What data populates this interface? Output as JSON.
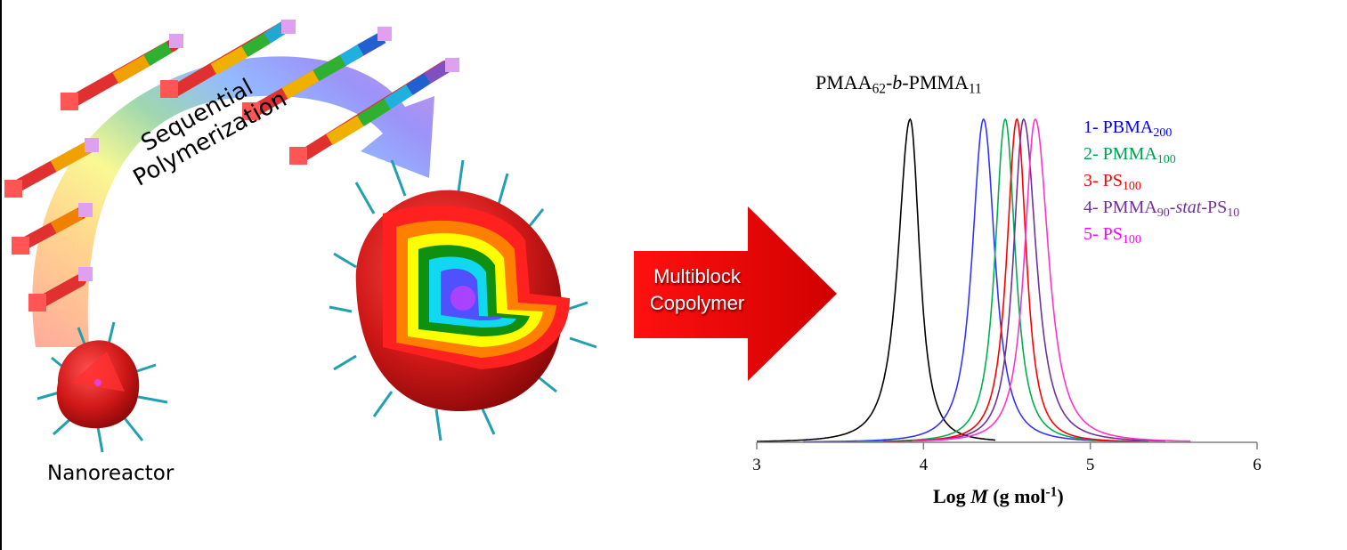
{
  "illustration": {
    "process_label_line1": "Sequential",
    "process_label_line2": "Polymerization",
    "nanoreactor_label": "Nanoreactor",
    "arrow_label_line1": "Multiblock",
    "arrow_label_line2": "Copolymer",
    "arrow_color": "#e00000"
  },
  "chart_data": {
    "type": "line",
    "title": "PMAA62-b-PMMA11",
    "title_parts": {
      "a": "PMAA",
      "a_sub": "62",
      "b": "-",
      "b_ital": "b",
      "c": "-PMMA",
      "c_sub": "11"
    },
    "xlabel": "Log M (g mol-1)",
    "xlabel_parts": {
      "a": "Log ",
      "m": "M",
      "b": " (g mol",
      "sup": "-1",
      "c": ")"
    },
    "ylabel": "",
    "xlim": [
      3,
      6
    ],
    "xticks": [
      "3",
      "4",
      "5",
      "6"
    ],
    "grid": false,
    "legend_position": "upper right",
    "series": [
      {
        "name": "PMAA62-b-PMMA11",
        "color": "#000000",
        "peak": 3.92,
        "fwhm_left": 0.19,
        "fwhm_right": 0.15,
        "start": 3.0,
        "end": 4.43
      },
      {
        "name": "1- PBMA200",
        "label": "1- PBMA",
        "sub": "200",
        "color": "#3333ff",
        "text_color": "#0000ff",
        "peak": 4.36,
        "fwhm_left": 0.18,
        "fwhm_right": 0.18,
        "start": 3.28,
        "end": 5.3
      },
      {
        "name": "2- PMMA100",
        "label": "2- PMMA",
        "sub": "100",
        "color": "#00b050",
        "text_color": "#00a050",
        "peak": 4.49,
        "fwhm_left": 0.16,
        "fwhm_right": 0.16,
        "start": 3.6,
        "end": 5.35
      },
      {
        "name": "3- PS100",
        "label": "3- PS",
        "sub": "100",
        "color": "#ff0000",
        "text_color": "#ff0000",
        "peak": 4.56,
        "fwhm_left": 0.16,
        "fwhm_right": 0.15,
        "start": 3.76,
        "end": 5.3
      },
      {
        "name": "4- PMMA90-stat-PS10",
        "label": "4- PMMA",
        "sub": "90",
        "mid": "-",
        "ital": "stat",
        "mid2": "-PS",
        "sub2": "10",
        "color": "#7030a0",
        "text_color": "#7030a0",
        "peak": 4.6,
        "fwhm_left": 0.16,
        "fwhm_right": 0.2,
        "start": 3.92,
        "end": 5.45
      },
      {
        "name": "5- PS100",
        "label": "5- PS",
        "sub": "100",
        "color": "#ff33cc",
        "text_color": "#ff00ff",
        "peak": 4.67,
        "fwhm_left": 0.17,
        "fwhm_right": 0.21,
        "start": 3.93,
        "end": 5.6
      }
    ]
  }
}
